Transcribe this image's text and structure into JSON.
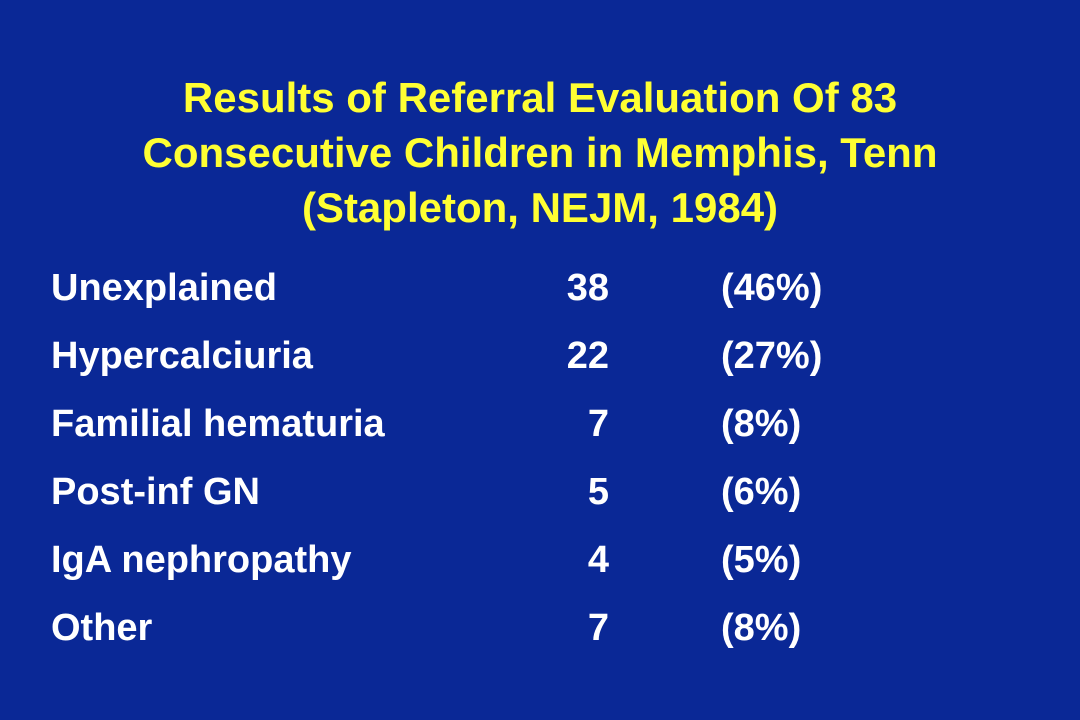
{
  "title": {
    "lines": [
      "Results of Referral Evaluation Of 83",
      "Consecutive Children in Memphis, Tenn",
      "(Stapleton, NEJM, 1984)"
    ]
  },
  "rows": [
    {
      "label": "Unexplained",
      "count": "38",
      "percent": "(46%)"
    },
    {
      "label": "Hypercalciuria",
      "count": "22",
      "percent": "(27%)"
    },
    {
      "label": "Familial hematuria",
      "count": "7",
      "percent": "(8%)"
    },
    {
      "label": "Post-inf GN",
      "count": "5",
      "percent": "(6%)"
    },
    {
      "label": "IgA nephropathy",
      "count": "4",
      "percent": "(5%)"
    },
    {
      "label": "Other",
      "count": "7",
      "percent": "(8%)"
    }
  ],
  "colors": {
    "background": "#0a2896",
    "title": "#ffff33",
    "body_text": "#ffffff"
  }
}
